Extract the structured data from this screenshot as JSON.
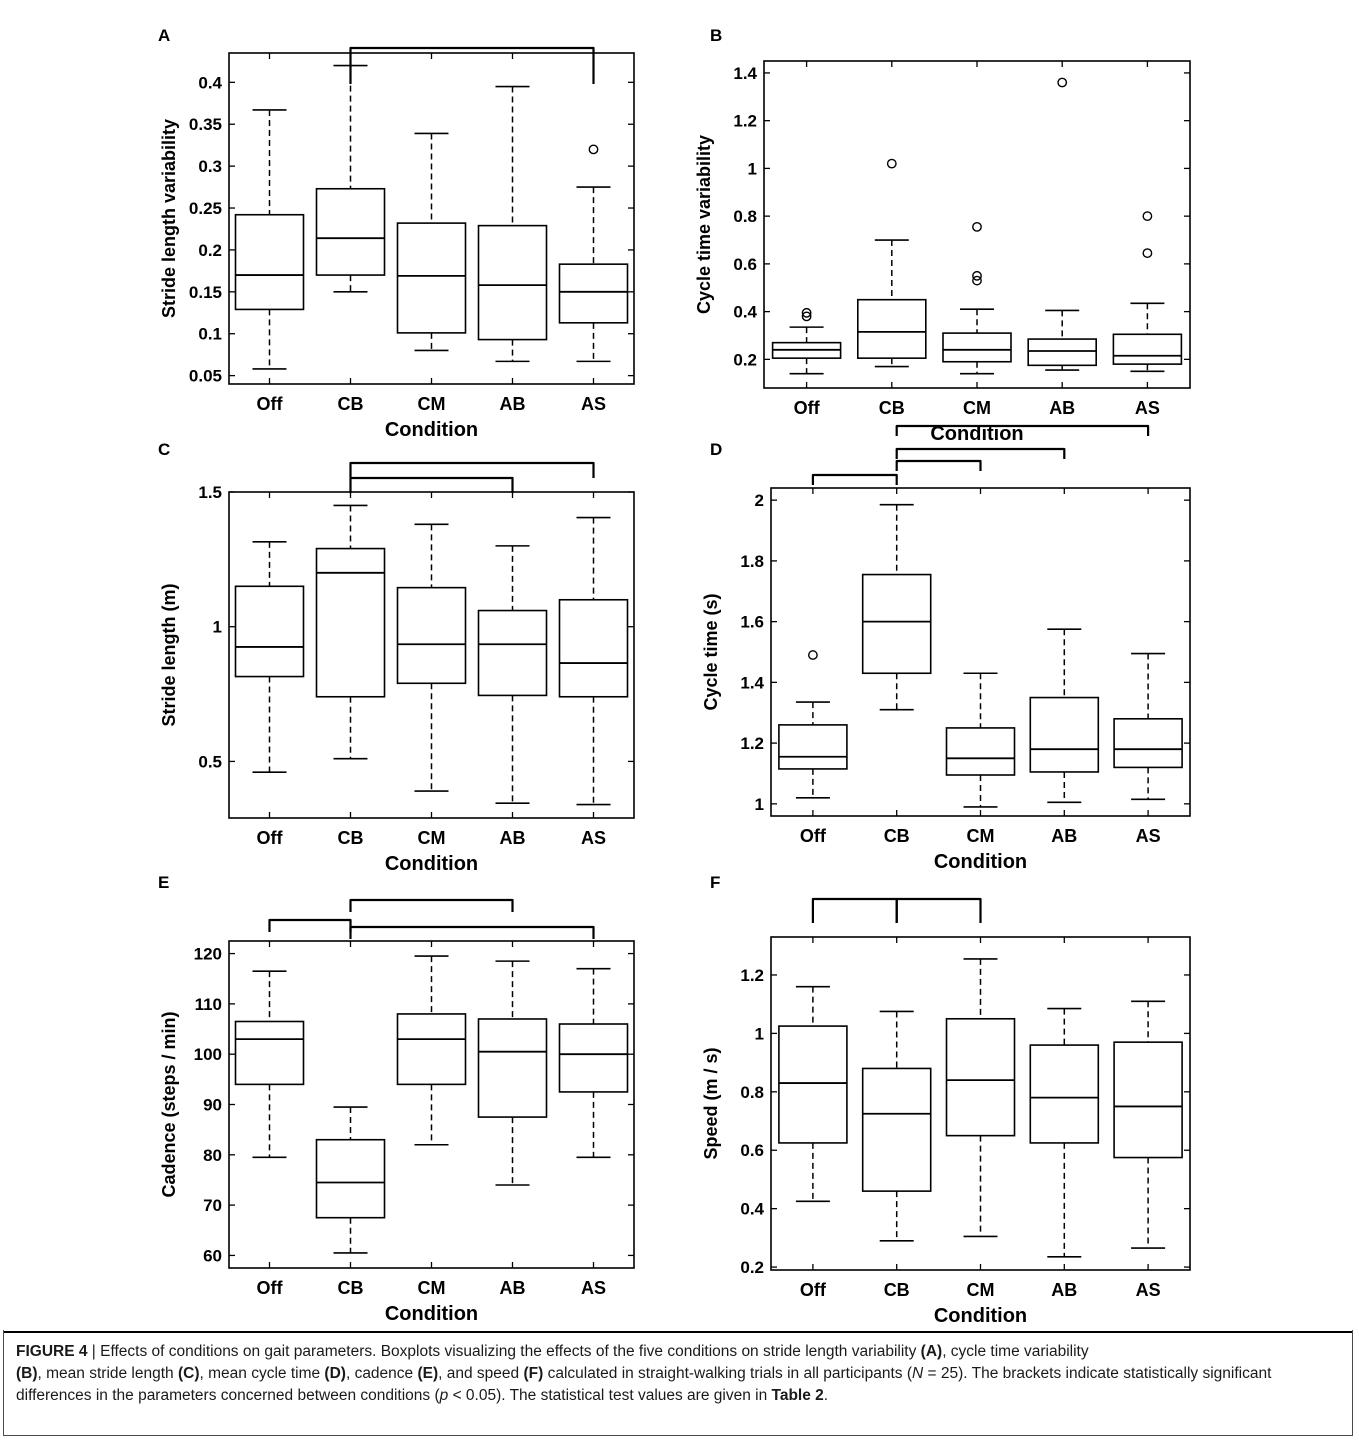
{
  "chart_data": [
    {
      "panel": "A",
      "type": "box",
      "ylabel": "Stride length variability",
      "xlabel": "Condition",
      "categories": [
        "Off",
        "CB",
        "CM",
        "AB",
        "AS"
      ],
      "ylim": [
        0.04,
        0.435
      ],
      "yticks": [
        0.05,
        0.1,
        0.15,
        0.2,
        0.25,
        0.3,
        0.35,
        0.4
      ],
      "ytick_labels": [
        "0.05",
        "0.1",
        "0.15",
        "0.2",
        "0.25",
        "0.3",
        "0.35",
        "0.4"
      ],
      "boxes": [
        {
          "whisker_low": 0.058,
          "q1": 0.129,
          "median": 0.17,
          "q3": 0.242,
          "whisker_high": 0.367,
          "outliers": []
        },
        {
          "whisker_low": 0.15,
          "q1": 0.17,
          "median": 0.214,
          "q3": 0.273,
          "whisker_high": 0.42,
          "outliers": []
        },
        {
          "whisker_low": 0.08,
          "q1": 0.101,
          "median": 0.169,
          "q3": 0.232,
          "whisker_high": 0.339,
          "outliers": []
        },
        {
          "whisker_low": 0.067,
          "q1": 0.093,
          "median": 0.158,
          "q3": 0.229,
          "whisker_high": 0.395,
          "outliers": []
        },
        {
          "whisker_low": 0.067,
          "q1": 0.113,
          "median": 0.15,
          "q3": 0.183,
          "whisker_high": 0.275,
          "outliers": [
            0.32
          ]
        }
      ],
      "brackets": [
        {
          "from": "CB",
          "to": "AS"
        }
      ]
    },
    {
      "panel": "B",
      "type": "box",
      "ylabel": "Cycle time variability",
      "xlabel": "Condition",
      "categories": [
        "Off",
        "CB",
        "CM",
        "AB",
        "AS"
      ],
      "ylim": [
        0.08,
        1.45
      ],
      "yticks": [
        0.2,
        0.4,
        0.6,
        0.8,
        1,
        1.2,
        1.4
      ],
      "ytick_labels": [
        "0.2",
        "0.4",
        "0.6",
        "0.8",
        "1",
        "1.2",
        "1.4"
      ],
      "boxes": [
        {
          "whisker_low": 0.14,
          "q1": 0.205,
          "median": 0.24,
          "q3": 0.27,
          "whisker_high": 0.335,
          "outliers": [
            0.38,
            0.395
          ]
        },
        {
          "whisker_low": 0.17,
          "q1": 0.205,
          "median": 0.315,
          "q3": 0.45,
          "whisker_high": 0.7,
          "outliers": [
            1.02
          ]
        },
        {
          "whisker_low": 0.14,
          "q1": 0.19,
          "median": 0.24,
          "q3": 0.31,
          "whisker_high": 0.41,
          "outliers": [
            0.53,
            0.55,
            0.755
          ]
        },
        {
          "whisker_low": 0.155,
          "q1": 0.175,
          "median": 0.235,
          "q3": 0.285,
          "whisker_high": 0.405,
          "outliers": [
            1.36
          ]
        },
        {
          "whisker_low": 0.15,
          "q1": 0.18,
          "median": 0.215,
          "q3": 0.305,
          "whisker_high": 0.435,
          "outliers": [
            0.645,
            0.8
          ]
        }
      ],
      "brackets": []
    },
    {
      "panel": "C",
      "type": "box",
      "ylabel": "Stride length (m)",
      "xlabel": "Condition",
      "categories": [
        "Off",
        "CB",
        "CM",
        "AB",
        "AS"
      ],
      "ylim": [
        0.29,
        1.5
      ],
      "yticks": [
        0.5,
        1,
        1.5
      ],
      "ytick_labels": [
        "0.5",
        "1",
        "1.5"
      ],
      "boxes": [
        {
          "whisker_low": 0.46,
          "q1": 0.815,
          "median": 0.925,
          "q3": 1.15,
          "whisker_high": 1.315,
          "outliers": []
        },
        {
          "whisker_low": 0.51,
          "q1": 0.74,
          "median": 1.2,
          "q3": 1.29,
          "whisker_high": 1.45,
          "outliers": []
        },
        {
          "whisker_low": 0.39,
          "q1": 0.79,
          "median": 0.935,
          "q3": 1.145,
          "whisker_high": 1.38,
          "outliers": []
        },
        {
          "whisker_low": 0.345,
          "q1": 0.745,
          "median": 0.935,
          "q3": 1.06,
          "whisker_high": 1.3,
          "outliers": []
        },
        {
          "whisker_low": 0.34,
          "q1": 0.74,
          "median": 0.865,
          "q3": 1.1,
          "whisker_high": 1.405,
          "outliers": []
        }
      ],
      "brackets": [
        {
          "from": "CB",
          "to": "AB"
        },
        {
          "from": "CB",
          "to": "AS"
        }
      ]
    },
    {
      "panel": "D",
      "type": "box",
      "ylabel": "Cycle time (s)",
      "xlabel": "Condition",
      "categories": [
        "Off",
        "CB",
        "CM",
        "AB",
        "AS"
      ],
      "ylim": [
        0.96,
        2.04
      ],
      "yticks": [
        1,
        1.2,
        1.4,
        1.6,
        1.8,
        2
      ],
      "ytick_labels": [
        "1",
        "1.2",
        "1.4",
        "1.6",
        "1.8",
        "2"
      ],
      "boxes": [
        {
          "whisker_low": 1.02,
          "q1": 1.115,
          "median": 1.155,
          "q3": 1.26,
          "whisker_high": 1.335,
          "outliers": [
            1.49
          ]
        },
        {
          "whisker_low": 1.31,
          "q1": 1.43,
          "median": 1.6,
          "q3": 1.755,
          "whisker_high": 1.985,
          "outliers": []
        },
        {
          "whisker_low": 0.99,
          "q1": 1.095,
          "median": 1.15,
          "q3": 1.25,
          "whisker_high": 1.43,
          "outliers": []
        },
        {
          "whisker_low": 1.005,
          "q1": 1.105,
          "median": 1.18,
          "q3": 1.35,
          "whisker_high": 1.575,
          "outliers": []
        },
        {
          "whisker_low": 1.015,
          "q1": 1.12,
          "median": 1.18,
          "q3": 1.28,
          "whisker_high": 1.495,
          "outliers": []
        }
      ],
      "brackets": [
        {
          "from": "Off",
          "to": "CB"
        },
        {
          "from": "CB",
          "to": "CM"
        },
        {
          "from": "CB",
          "to": "AB"
        },
        {
          "from": "CB",
          "to": "AS"
        }
      ]
    },
    {
      "panel": "E",
      "type": "box",
      "ylabel": "Cadence (steps / min)",
      "xlabel": "Condition",
      "categories": [
        "Off",
        "CB",
        "CM",
        "AB",
        "AS"
      ],
      "ylim": [
        57.5,
        122.5
      ],
      "yticks": [
        60,
        70,
        80,
        90,
        100,
        110,
        120
      ],
      "ytick_labels": [
        "60",
        "70",
        "80",
        "90",
        "100",
        "110",
        "120"
      ],
      "boxes": [
        {
          "whisker_low": 79.5,
          "q1": 94,
          "median": 103,
          "q3": 106.5,
          "whisker_high": 116.5,
          "outliers": []
        },
        {
          "whisker_low": 60.5,
          "q1": 67.5,
          "median": 74.5,
          "q3": 83,
          "whisker_high": 89.5,
          "outliers": []
        },
        {
          "whisker_low": 82,
          "q1": 94,
          "median": 103,
          "q3": 108,
          "whisker_high": 119.5,
          "outliers": []
        },
        {
          "whisker_low": 74,
          "q1": 87.5,
          "median": 100.5,
          "q3": 107,
          "whisker_high": 118.5,
          "outliers": []
        },
        {
          "whisker_low": 79.5,
          "q1": 92.5,
          "median": 100,
          "q3": 106,
          "whisker_high": 117,
          "outliers": []
        }
      ],
      "brackets": [
        {
          "from": "Off",
          "to": "CB"
        },
        {
          "from": "CB",
          "to": "AB"
        },
        {
          "from": "CB",
          "to": "AS"
        }
      ]
    },
    {
      "panel": "F",
      "type": "box",
      "ylabel": "Speed (m / s)",
      "xlabel": "Condition",
      "categories": [
        "Off",
        "CB",
        "CM",
        "AB",
        "AS"
      ],
      "ylim": [
        0.19,
        1.33
      ],
      "yticks": [
        0.2,
        0.4,
        0.6,
        0.8,
        1,
        1.2
      ],
      "ytick_labels": [
        "0.2",
        "0.4",
        "0.6",
        "0.8",
        "1",
        "1.2"
      ],
      "boxes": [
        {
          "whisker_low": 0.425,
          "q1": 0.625,
          "median": 0.83,
          "q3": 1.025,
          "whisker_high": 1.16,
          "outliers": []
        },
        {
          "whisker_low": 0.29,
          "q1": 0.46,
          "median": 0.725,
          "q3": 0.88,
          "whisker_high": 1.075,
          "outliers": []
        },
        {
          "whisker_low": 0.305,
          "q1": 0.65,
          "median": 0.84,
          "q3": 1.05,
          "whisker_high": 1.255,
          "outliers": []
        },
        {
          "whisker_low": 0.235,
          "q1": 0.625,
          "median": 0.78,
          "q3": 0.96,
          "whisker_high": 1.085,
          "outliers": []
        },
        {
          "whisker_low": 0.265,
          "q1": 0.575,
          "median": 0.75,
          "q3": 0.97,
          "whisker_high": 1.11,
          "outliers": []
        }
      ],
      "brackets": [
        {
          "from": "Off",
          "to": "CB"
        },
        {
          "from": "CB",
          "to": "CM"
        }
      ]
    }
  ],
  "caption": {
    "figure_label": "FIGURE 4",
    "separator": " | ",
    "text_1": "Effects of conditions on gait parameters. Boxplots visualizing the effects of the five conditions on stride length variability ",
    "ref_a": "(A)",
    "text_2": ", cycle time variability ",
    "ref_b": "(B)",
    "text_3": ", mean stride length ",
    "ref_c": "(C)",
    "text_4": ", mean cycle time ",
    "ref_d": "(D)",
    "text_5": ", cadence ",
    "ref_e": "(E)",
    "text_6": ", and speed ",
    "ref_f": "(F)",
    "text_7": " calculated in straight-walking trials in all participants (",
    "n_symbol": "N",
    "text_8": " = 25). The brackets indicate statistically significant differences in the parameters concerned between conditions (",
    "p_symbol": "p",
    "text_9": " < 0.05). The statistical test values are given in ",
    "table_ref": "Table 2",
    "text_10": "."
  },
  "colors": {
    "ink": "#000000",
    "caption_text": "#1a1a1a",
    "frame": "#4a4a4a"
  }
}
